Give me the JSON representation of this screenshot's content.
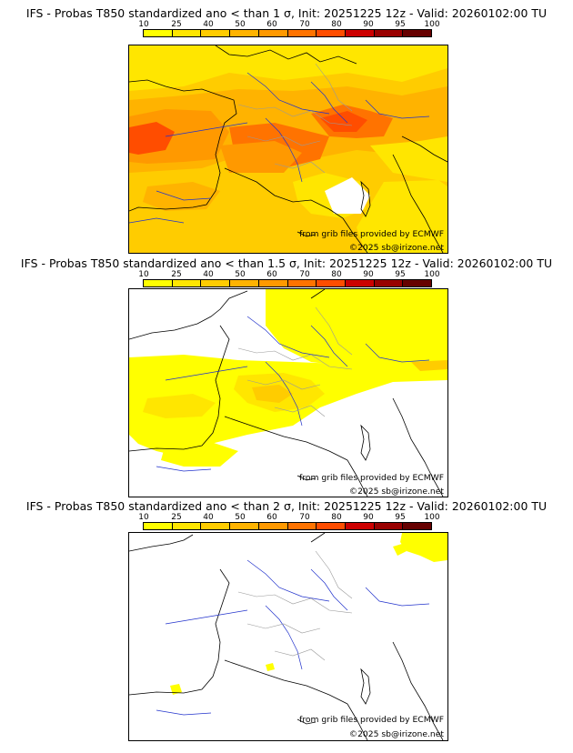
{
  "colorbar": {
    "ticks": [
      "10",
      "25",
      "40",
      "50",
      "60",
      "70",
      "80",
      "90",
      "95",
      "100"
    ],
    "colors": [
      "#ffff00",
      "#ffe600",
      "#ffcc00",
      "#ffb300",
      "#ff9900",
      "#ff7300",
      "#ff4d00",
      "#cc0000",
      "#990000",
      "#660000"
    ]
  },
  "panels": [
    {
      "title": "IFS - Probas T850  standardized ano < than 1 σ, Init: 20251225 12z - Valid: 20260102:00 TU",
      "credit": "from grib files provided by ECMWF",
      "copyright": "©2025 sb@irizone.net"
    },
    {
      "title": "IFS - Probas T850  standardized ano < than 1.5 σ, Init: 20251225 12z - Valid: 20260102:00 TU",
      "credit": "from grib files provided by ECMWF",
      "copyright": "©2025 sb@irizone.net"
    },
    {
      "title": "IFS - Probas T850  standardized ano < than 2 σ, Init: 20251225 12z - Valid: 20260102:00 TU",
      "credit": "from grib files provided by ECMWF",
      "copyright": "©2025 sb@irizone.net"
    }
  ]
}
